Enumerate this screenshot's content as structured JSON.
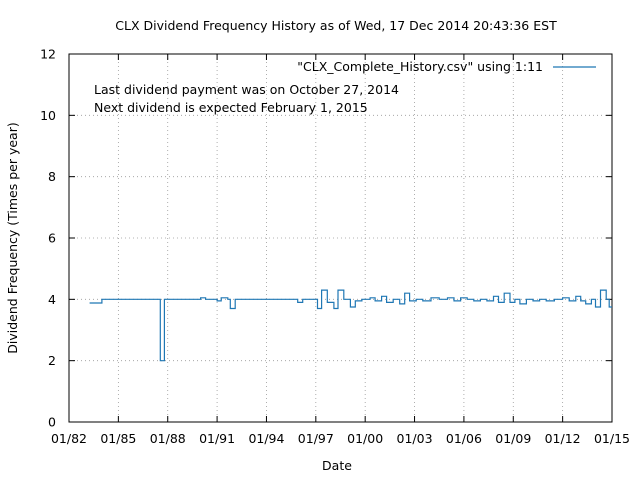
{
  "chart_data": {
    "type": "line",
    "title": "CLX Dividend Frequency History as of Wed, 17 Dec 2014 20:43:36 EST",
    "xlabel": "Date",
    "ylabel": "Dividend Frequency (Times per year)",
    "x_ticks": [
      "01/82",
      "01/85",
      "01/88",
      "01/91",
      "01/94",
      "01/97",
      "01/00",
      "01/03",
      "01/06",
      "01/09",
      "01/12",
      "01/15"
    ],
    "xlim": [
      1982.0,
      2015.0
    ],
    "y_ticks": [
      "0",
      "2",
      "4",
      "6",
      "8",
      "10",
      "12"
    ],
    "ylim": [
      0,
      12
    ],
    "grid": true,
    "legend_position": "top-right",
    "annotations": [
      "Last dividend payment was on October 27, 2014",
      "Next dividend is expected February 1, 2015"
    ],
    "series": [
      {
        "name": "\"CLX_Complete_History.csv\" using 1:11",
        "color": "#1f77b4",
        "step": true,
        "points": [
          [
            1983.25,
            3.88
          ],
          [
            1984.0,
            4.0
          ],
          [
            1987.55,
            2.0
          ],
          [
            1987.8,
            4.0
          ],
          [
            1990.0,
            4.05
          ],
          [
            1990.3,
            4.0
          ],
          [
            1991.0,
            3.95
          ],
          [
            1991.25,
            4.05
          ],
          [
            1991.65,
            4.0
          ],
          [
            1991.8,
            3.7
          ],
          [
            1992.1,
            4.0
          ],
          [
            1995.9,
            3.9
          ],
          [
            1996.2,
            4.0
          ],
          [
            1997.1,
            3.7
          ],
          [
            1997.35,
            4.3
          ],
          [
            1997.7,
            3.9
          ],
          [
            1998.1,
            3.7
          ],
          [
            1998.35,
            4.3
          ],
          [
            1998.7,
            4.0
          ],
          [
            1999.1,
            3.75
          ],
          [
            1999.4,
            3.95
          ],
          [
            1999.8,
            4.0
          ],
          [
            2000.3,
            4.05
          ],
          [
            2000.6,
            3.95
          ],
          [
            2001.0,
            4.1
          ],
          [
            2001.3,
            3.9
          ],
          [
            2001.7,
            4.0
          ],
          [
            2002.1,
            3.85
          ],
          [
            2002.4,
            4.2
          ],
          [
            2002.7,
            3.95
          ],
          [
            2003.1,
            4.0
          ],
          [
            2003.5,
            3.95
          ],
          [
            2004.0,
            4.05
          ],
          [
            2004.5,
            4.0
          ],
          [
            2005.0,
            4.05
          ],
          [
            2005.4,
            3.95
          ],
          [
            2005.8,
            4.05
          ],
          [
            2006.2,
            4.0
          ],
          [
            2006.6,
            3.95
          ],
          [
            2007.0,
            4.0
          ],
          [
            2007.4,
            3.95
          ],
          [
            2007.8,
            4.1
          ],
          [
            2008.1,
            3.9
          ],
          [
            2008.45,
            4.2
          ],
          [
            2008.8,
            3.9
          ],
          [
            2009.1,
            4.0
          ],
          [
            2009.4,
            3.85
          ],
          [
            2009.8,
            4.0
          ],
          [
            2010.2,
            3.95
          ],
          [
            2010.6,
            4.0
          ],
          [
            2011.0,
            3.95
          ],
          [
            2011.5,
            4.0
          ],
          [
            2012.0,
            4.05
          ],
          [
            2012.4,
            3.95
          ],
          [
            2012.8,
            4.1
          ],
          [
            2013.1,
            3.95
          ],
          [
            2013.4,
            3.85
          ],
          [
            2013.75,
            4.0
          ],
          [
            2014.0,
            3.75
          ],
          [
            2014.3,
            4.3
          ],
          [
            2014.65,
            4.0
          ],
          [
            2014.83,
            3.75
          ],
          [
            2015.0,
            3.75
          ]
        ]
      }
    ]
  }
}
